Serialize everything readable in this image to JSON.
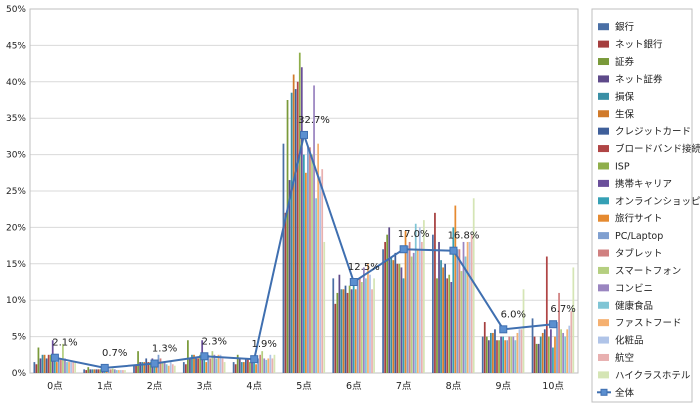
{
  "chart_data": {
    "type": "bar",
    "title": "",
    "xlabel": "",
    "ylabel": "",
    "categories": [
      "0点",
      "1点",
      "2点",
      "3点",
      "4点",
      "5点",
      "6点",
      "7点",
      "8点",
      "9点",
      "10点"
    ],
    "ylim": [
      0,
      50
    ],
    "yticks": [
      "0%",
      "5%",
      "10%",
      "15%",
      "20%",
      "25%",
      "30%",
      "35%",
      "40%",
      "45%",
      "50%"
    ],
    "grid": true,
    "legend_position": "right",
    "series": [
      {
        "name": "銀行",
        "color": "#4a6fa5",
        "values": [
          1.5,
          0.5,
          1.0,
          1.5,
          1.5,
          31.5,
          13.0,
          17.0,
          19.0,
          5.0,
          7.5
        ]
      },
      {
        "name": "ネット銀行",
        "color": "#a53f3f",
        "values": [
          1.2,
          0.4,
          1.0,
          1.2,
          1.2,
          22.0,
          9.5,
          18.0,
          22.0,
          7.0,
          5.0
        ]
      },
      {
        "name": "証券",
        "color": "#7a9a3a",
        "values": [
          3.5,
          0.8,
          3.0,
          4.5,
          2.5,
          37.5,
          11.0,
          19.0,
          13.0,
          5.0,
          4.0
        ]
      },
      {
        "name": "ネット証券",
        "color": "#5e4a8a",
        "values": [
          2.0,
          0.5,
          1.5,
          2.0,
          2.0,
          26.5,
          13.5,
          20.0,
          18.0,
          4.5,
          4.0
        ]
      },
      {
        "name": "損保",
        "color": "#3a8fa5",
        "values": [
          2.5,
          0.5,
          1.5,
          2.5,
          1.5,
          38.5,
          11.5,
          16.0,
          15.5,
          5.5,
          5.0
        ]
      },
      {
        "name": "生保",
        "color": "#d07a2a",
        "values": [
          2.5,
          0.5,
          1.5,
          2.5,
          1.5,
          41.0,
          11.5,
          15.5,
          14.5,
          5.5,
          5.5
        ]
      },
      {
        "name": "クレジットカード",
        "color": "#3f5f9a",
        "values": [
          2.0,
          0.5,
          2.0,
          2.0,
          2.0,
          39.0,
          12.0,
          16.5,
          15.0,
          6.0,
          6.0
        ]
      },
      {
        "name": "ブロードバンド接続",
        "color": "#b04545",
        "values": [
          2.5,
          0.5,
          1.5,
          2.0,
          2.0,
          40.0,
          11.0,
          15.0,
          13.0,
          4.5,
          16.0
        ]
      },
      {
        "name": "ISP",
        "color": "#8fae4a",
        "values": [
          2.5,
          0.5,
          1.5,
          2.5,
          1.5,
          44.0,
          12.0,
          15.0,
          13.5,
          4.5,
          5.0
        ]
      },
      {
        "name": "携帯キャリア",
        "color": "#6a4f9a",
        "values": [
          4.5,
          0.8,
          2.0,
          4.5,
          2.0,
          42.0,
          11.5,
          14.5,
          12.5,
          5.0,
          6.0
        ]
      },
      {
        "name": "オンラインショッピング",
        "color": "#35a0b5",
        "values": [
          1.8,
          0.4,
          1.5,
          1.8,
          1.5,
          30.0,
          12.0,
          13.0,
          20.0,
          5.0,
          3.5
        ]
      },
      {
        "name": "旅行サイト",
        "color": "#e58a30",
        "values": [
          1.5,
          0.4,
          1.2,
          1.5,
          1.2,
          27.5,
          11.5,
          19.5,
          23.0,
          4.5,
          5.0
        ]
      },
      {
        "name": "PC/Laptop",
        "color": "#7f9fd0",
        "values": [
          2.0,
          0.5,
          2.5,
          2.5,
          2.0,
          31.0,
          13.0,
          17.5,
          17.0,
          4.5,
          7.0
        ]
      },
      {
        "name": "タブレット",
        "color": "#d08080",
        "values": [
          2.0,
          0.5,
          2.0,
          2.0,
          2.5,
          31.0,
          13.0,
          18.0,
          17.0,
          5.0,
          11.0
        ]
      },
      {
        "name": "スマートフォン",
        "color": "#b5cf80",
        "values": [
          4.0,
          0.6,
          1.5,
          3.0,
          3.0,
          30.0,
          12.5,
          16.0,
          14.0,
          5.0,
          6.0
        ]
      },
      {
        "name": "コンビニ",
        "color": "#9a85c0",
        "values": [
          2.0,
          0.5,
          1.5,
          2.5,
          2.0,
          39.5,
          14.5,
          16.5,
          18.0,
          5.0,
          5.5
        ]
      },
      {
        "name": "健康食品",
        "color": "#80c5d5",
        "values": [
          1.5,
          0.4,
          1.2,
          2.0,
          1.8,
          24.0,
          13.0,
          20.5,
          16.0,
          4.5,
          5.0
        ]
      },
      {
        "name": "ファストフード",
        "color": "#f5b070",
        "values": [
          1.5,
          0.4,
          1.0,
          2.5,
          2.0,
          31.5,
          15.0,
          17.0,
          18.0,
          5.5,
          6.0
        ]
      },
      {
        "name": "化粧品",
        "color": "#b0c4e8",
        "values": [
          1.5,
          0.4,
          1.5,
          2.5,
          2.5,
          27.0,
          13.5,
          20.0,
          18.0,
          6.0,
          6.5
        ]
      },
      {
        "name": "航空",
        "color": "#e8b0b0",
        "values": [
          1.5,
          0.4,
          1.2,
          2.0,
          2.0,
          28.0,
          11.5,
          18.0,
          19.0,
          6.0,
          8.5
        ]
      },
      {
        "name": "ハイクラスホテル",
        "color": "#d5e5b5",
        "values": [
          1.5,
          0.4,
          1.0,
          1.5,
          2.5,
          18.0,
          13.0,
          21.0,
          24.0,
          11.5,
          14.5
        ]
      },
      {
        "name": "全体",
        "color": "#3f6fb0",
        "type": "line",
        "values": [
          2.1,
          0.7,
          1.3,
          2.3,
          1.9,
          32.7,
          12.5,
          17.0,
          16.8,
          6.0,
          6.7
        ],
        "labels": [
          "2.1%",
          "0.7%",
          "1.3%",
          "2.3%",
          "1.9%",
          "32.7%",
          "12.5%",
          "17.0%",
          "16.8%",
          "6.0%",
          "6.7%"
        ]
      }
    ]
  }
}
